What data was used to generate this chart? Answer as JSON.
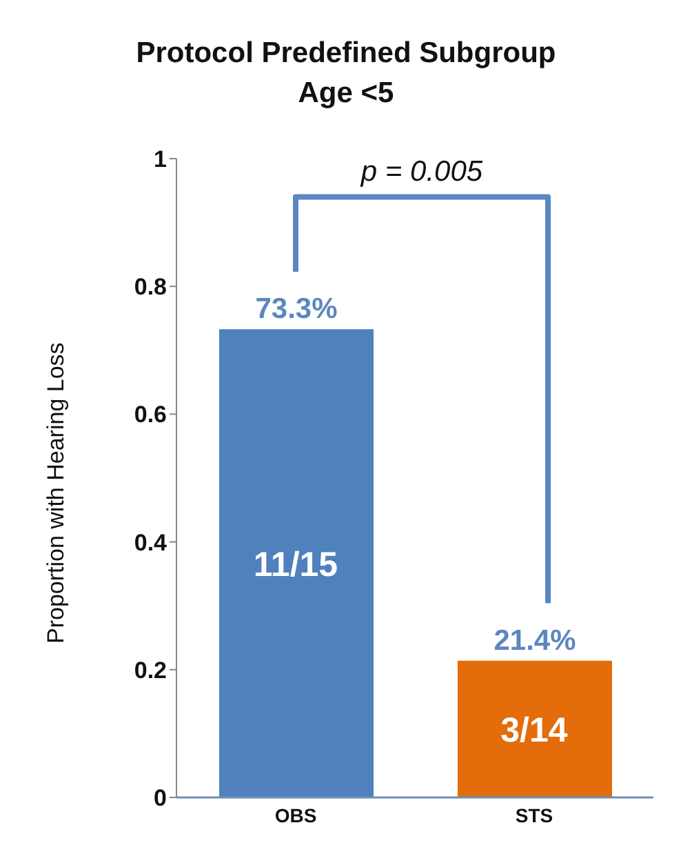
{
  "chart_data": {
    "type": "bar",
    "title": "Protocol Predefined Subgroup",
    "subtitle": "Age <5",
    "ylabel": "Proportion with Hearing Loss",
    "categories": [
      "OBS",
      "STS"
    ],
    "values": [
      0.733,
      0.214
    ],
    "colors": [
      "#4f81bd",
      "#e46c0a"
    ],
    "value_labels": [
      "73.3%",
      "21.4%"
    ],
    "ylim": [
      0,
      1
    ],
    "yticks": [
      0,
      0.2,
      0.4,
      0.6,
      0.8,
      1
    ],
    "annotations": [
      "p = 0.005",
      "11/15",
      "3/14"
    ]
  }
}
